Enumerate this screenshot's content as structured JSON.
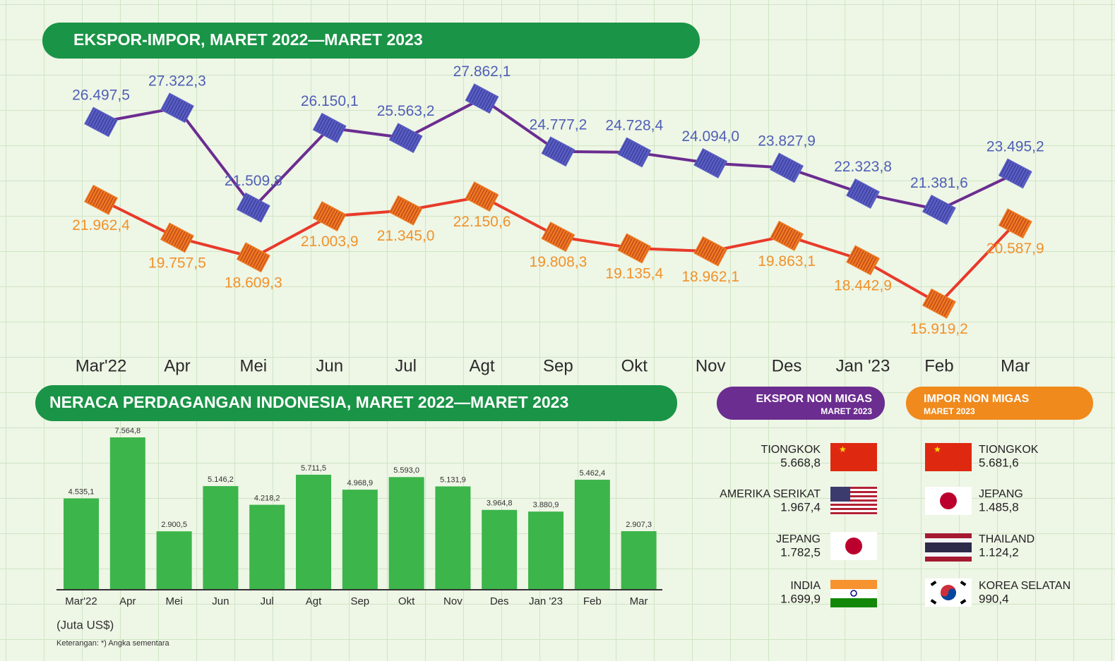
{
  "chart_data": [
    {
      "type": "line",
      "title": "EKSPOR-IMPOR, MARET 2022—MARET 2023",
      "categories": [
        "Mar'22",
        "Apr",
        "Mei",
        "Jun",
        "Jul",
        "Agt",
        "Sep",
        "Okt",
        "Nov",
        "Des",
        "Jan '23",
        "Feb",
        "Mar"
      ],
      "ylim": [
        14000,
        29000
      ],
      "series": [
        {
          "color": "#6b2d90",
          "marker_color": "#5a5fc4",
          "label_color": "#4f5fb5",
          "values": [
            26497.5,
            27322.3,
            21509.8,
            26150.1,
            25563.2,
            27862.1,
            24777.2,
            24728.4,
            24094.0,
            23827.9,
            22323.8,
            21381.6,
            23495.2
          ],
          "value_labels": [
            "26.497,5",
            "27.322,3",
            "21.509,8",
            "26.150,1",
            "25.563,2",
            "27.862,1",
            "24.777,2",
            "24.728,4",
            "24.094,0",
            "23.827,9",
            "22.323,8",
            "21.381,6",
            "23.495,2"
          ]
        },
        {
          "color": "#e83a2a",
          "marker_color": "#ee7a22",
          "label_color": "#f0922a",
          "values": [
            21962.4,
            19757.5,
            18609.3,
            21003.9,
            21345.0,
            22150.6,
            19808.3,
            19135.4,
            18962.1,
            19863.1,
            18442.9,
            15919.2,
            20587.9
          ],
          "value_labels": [
            "21.962,4",
            "19.757,5",
            "18.609,3",
            "21.003,9",
            "21.345,0",
            "22.150,6",
            "19.808,3",
            "19.135,4",
            "18.962,1",
            "19.863,1",
            "18.442,9",
            "15.919,2",
            "20.587,9"
          ]
        }
      ]
    },
    {
      "type": "bar",
      "title": "NERACA PERDAGANGAN INDONESIA, MARET 2022—MARET 2023",
      "categories": [
        "Mar'22",
        "Apr",
        "Mei",
        "Jun",
        "Jul",
        "Agt",
        "Sep",
        "Okt",
        "Nov",
        "Des",
        "Jan '23",
        "Feb",
        "Mar"
      ],
      "values": [
        4535.1,
        7564.8,
        2900.5,
        5146.2,
        4218.2,
        5711.5,
        4968.9,
        5593.0,
        5131.9,
        3964.8,
        3880.9,
        5462.4,
        2907.3
      ],
      "value_labels": [
        "4.535,1",
        "7.564,8",
        "2.900,5",
        "5.146,2",
        "4.218,2",
        "5.711,5",
        "4.968,9",
        "5.593,0",
        "5.131,9",
        "3.964,8",
        "3.880,9",
        "5.462,4",
        "2.907,3"
      ],
      "color": "#3cb54a",
      "ylim": [
        0,
        8000
      ],
      "unit": "(Juta US$)",
      "note": "Keterangan: *) Angka sementara"
    }
  ],
  "export_non_migas": {
    "title": "EKSPOR NON MIGAS",
    "subtitle": "MARET 2023",
    "rows": [
      [
        "TIONGKOK",
        "5.668,8"
      ],
      [
        "AMERIKA SERIKAT",
        "1.967,4"
      ],
      [
        "JEPANG",
        "1.782,5"
      ],
      [
        "INDIA",
        "1.699,9"
      ]
    ]
  },
  "import_non_migas": {
    "title": "IMPOR NON MIGAS",
    "subtitle": "MARET 2023",
    "rows": [
      [
        "TIONGKOK",
        "5.681,6"
      ],
      [
        "JEPANG",
        "1.485,8"
      ],
      [
        "THAILAND",
        "1.124,2"
      ],
      [
        "KOREA SELATAN",
        "990,4"
      ]
    ]
  }
}
